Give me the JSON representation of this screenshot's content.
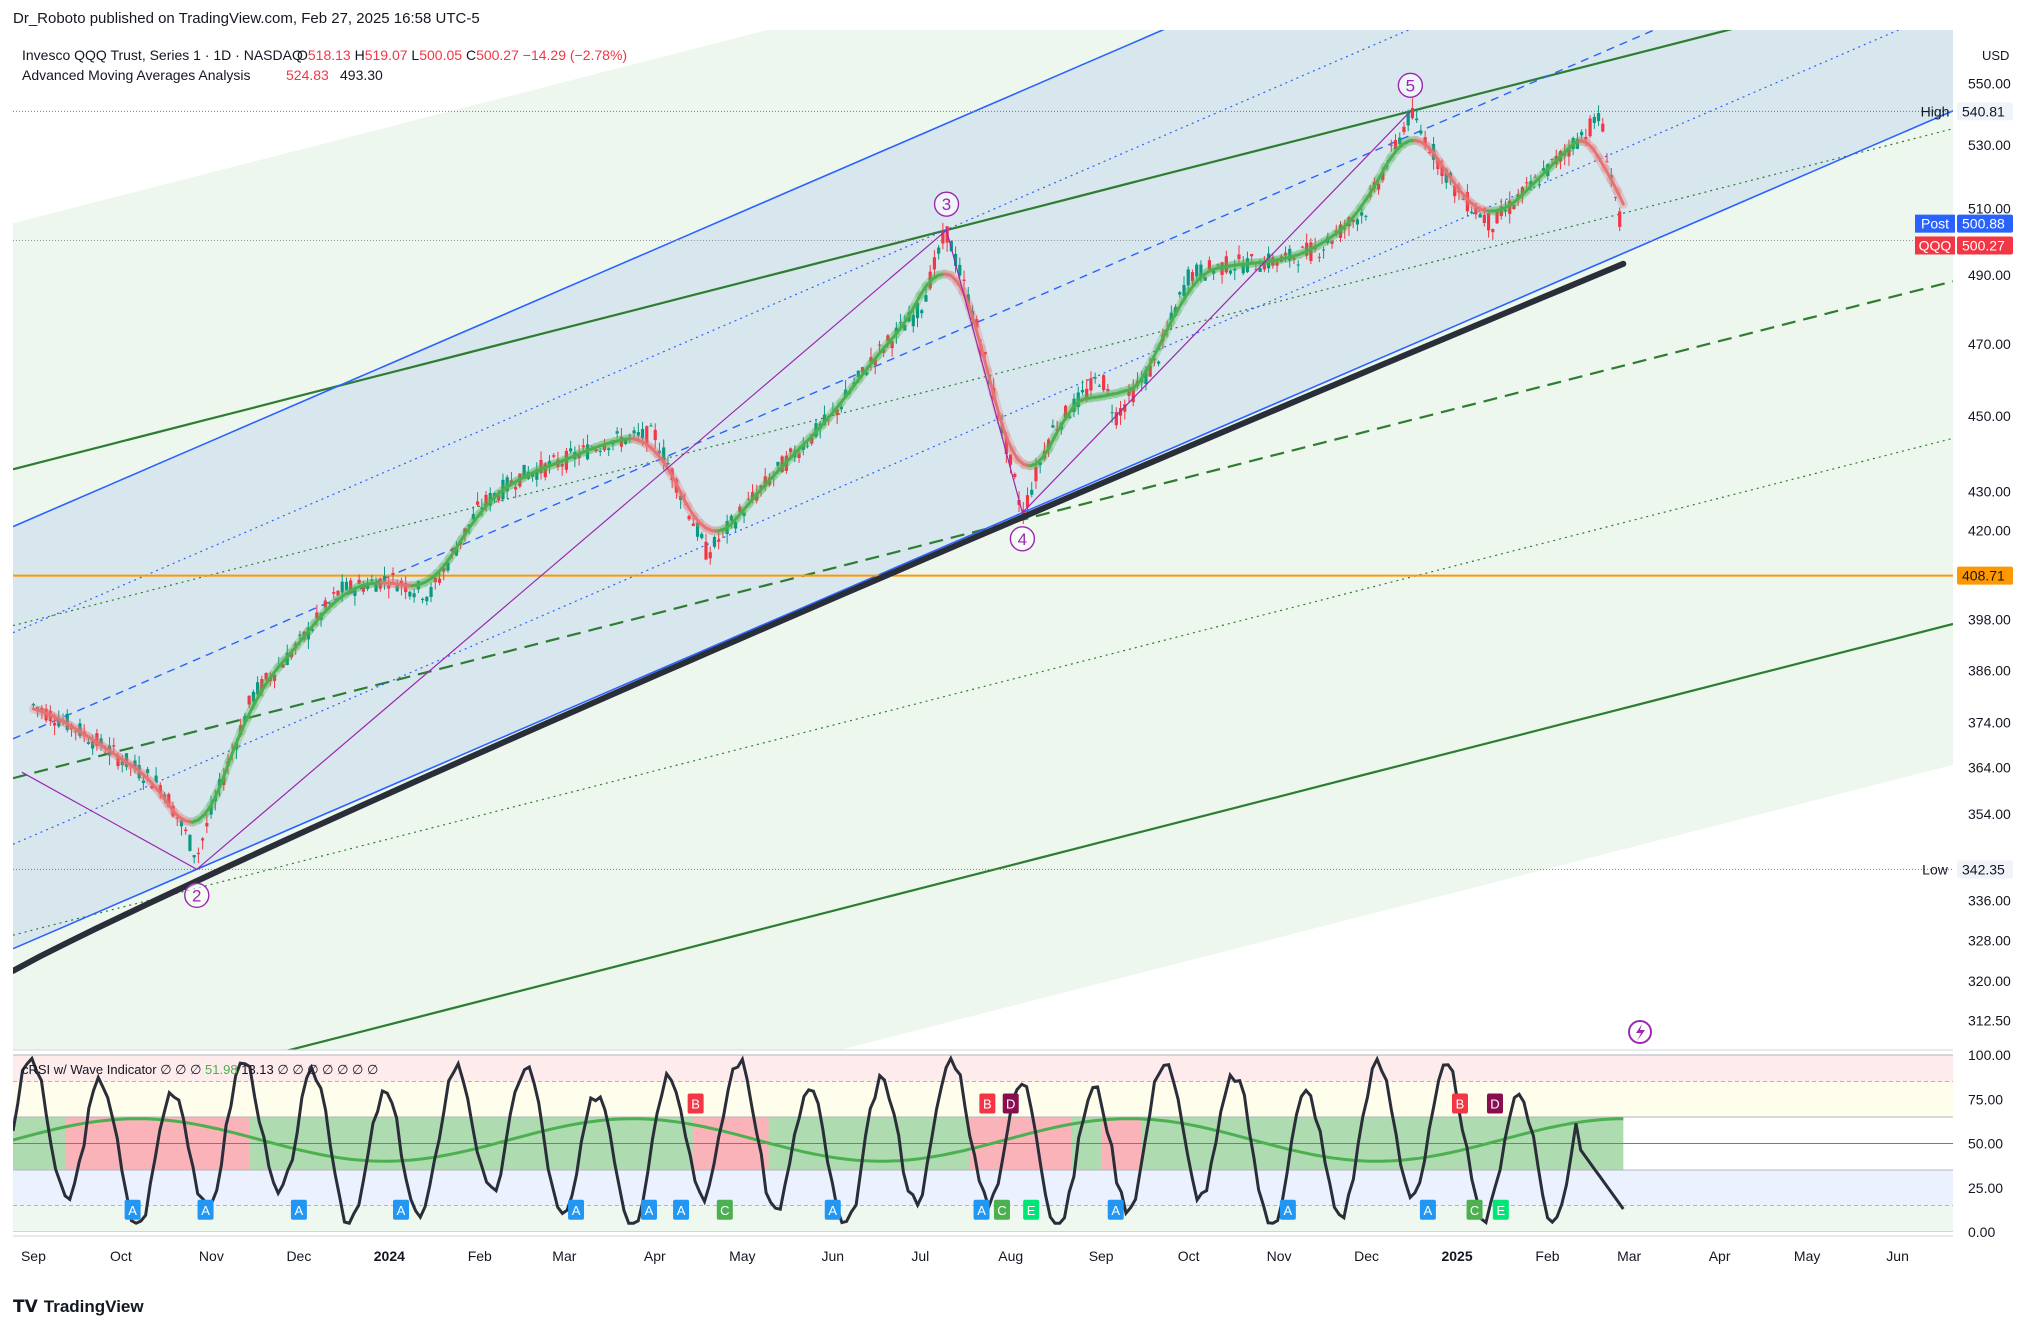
{
  "header": {
    "publisher_line": "Dr_Roboto published on TradingView.com, Feb 27, 2025 16:58 UTC-5",
    "symbol_title": "Invesco QQQ Trust, Series 1 · 1D · NASDAQ",
    "ohlc": {
      "o_label": "O",
      "o": "518.13",
      "h_label": "H",
      "h": "519.07",
      "l_label": "L",
      "l": "500.05",
      "c_label": "C",
      "c": "500.27",
      "change": "−14.29 (−2.78%)"
    },
    "indicator_name": "Advanced Moving Averages Analysis",
    "indicator_v1": "524.83",
    "indicator_v2": "493.30",
    "currency": "USD"
  },
  "chart_data": [
    {
      "type": "line",
      "name_shown": "Invesco QQQ Trust, Series 1",
      "x_ticks": [
        "Sep",
        "Oct",
        "Nov",
        "Dec",
        "2024",
        "Feb",
        "Mar",
        "Apr",
        "May",
        "Jun",
        "Jul",
        "Aug",
        "Sep",
        "Oct",
        "Nov",
        "Dec",
        "2025",
        "Feb",
        "Mar",
        "Apr",
        "May",
        "Jun"
      ],
      "y_ticks": [
        "550.00",
        "530.00",
        "510.00",
        "490.00",
        "470.00",
        "450.00",
        "430.00",
        "420.00",
        "398.00",
        "386.00",
        "374.00",
        "364.00",
        "354.00",
        "336.00",
        "328.00",
        "320.00",
        "312.50"
      ],
      "scale": "log",
      "ylim": [
        307,
        568
      ],
      "price_x": [
        "2023-09-01",
        "2023-09-15",
        "2023-10-01",
        "2023-10-15",
        "2023-10-27",
        "2023-11-15",
        "2023-12-01",
        "2023-12-15",
        "2024-01-01",
        "2024-01-15",
        "2024-02-01",
        "2024-02-15",
        "2024-03-01",
        "2024-03-15",
        "2024-04-01",
        "2024-04-19",
        "2024-05-01",
        "2024-05-15",
        "2024-06-01",
        "2024-06-15",
        "2024-07-01",
        "2024-07-10",
        "2024-07-20",
        "2024-08-05",
        "2024-08-15",
        "2024-09-01",
        "2024-09-06",
        "2024-09-20",
        "2024-10-01",
        "2024-10-15",
        "2024-11-01",
        "2024-11-15",
        "2024-12-01",
        "2024-12-16",
        "2025-01-01",
        "2025-01-13",
        "2025-02-01",
        "2025-02-19",
        "2025-02-27"
      ],
      "price_y": [
        378,
        373,
        366,
        360,
        345,
        380,
        392,
        405,
        408,
        404,
        426,
        434,
        438,
        443,
        445,
        414,
        425,
        437,
        450,
        466,
        480,
        503,
        476,
        424,
        446,
        461,
        450,
        465,
        490,
        493,
        494,
        498,
        510,
        540,
        515,
        505,
        522,
        539,
        500
      ],
      "ma_fast_label": "Advanced Moving Averages Analysis 524.83",
      "ma_slow_label": "493.30",
      "last_close": 500.27,
      "post_close": 500.88,
      "high": 540.81,
      "low": 342.35,
      "horizontal_level": 408.71,
      "wave_labels": [
        "2",
        "3",
        "4",
        "5"
      ],
      "wave_points_x": [
        "2023-10-27",
        "2024-07-10",
        "2024-08-05",
        "2024-12-16"
      ],
      "wave_points_y": [
        342.35,
        503.4,
        424.5,
        540.81
      ]
    },
    {
      "type": "line",
      "name_shown": "cRSI w/ Wave Indicator",
      "ylim": [
        0,
        100
      ],
      "y_ticks": [
        "100.00",
        "75.00",
        "50.00",
        "25.00",
        "0.00"
      ],
      "values_shown": [
        "51.98",
        "13.13"
      ],
      "markers": [
        {
          "label": "A",
          "x": "2023-10-05"
        },
        {
          "label": "A",
          "x": "2023-10-30"
        },
        {
          "label": "A",
          "x": "2023-12-01"
        },
        {
          "label": "A",
          "x": "2024-01-05"
        },
        {
          "label": "A",
          "x": "2024-03-05"
        },
        {
          "label": "A",
          "x": "2024-03-30"
        },
        {
          "label": "A",
          "x": "2024-04-10"
        },
        {
          "label": "B",
          "x": "2024-04-15"
        },
        {
          "label": "C",
          "x": "2024-04-25"
        },
        {
          "label": "A",
          "x": "2024-06-01"
        },
        {
          "label": "A",
          "x": "2024-07-22"
        },
        {
          "label": "B",
          "x": "2024-07-24"
        },
        {
          "label": "C",
          "x": "2024-07-29"
        },
        {
          "label": "D",
          "x": "2024-08-01"
        },
        {
          "label": "E",
          "x": "2024-08-08"
        },
        {
          "label": "A",
          "x": "2024-09-06"
        },
        {
          "label": "A",
          "x": "2024-11-04"
        },
        {
          "label": "A",
          "x": "2024-12-22"
        },
        {
          "label": "B",
          "x": "2025-01-02"
        },
        {
          "label": "C",
          "x": "2025-01-07"
        },
        {
          "label": "D",
          "x": "2025-01-14"
        },
        {
          "label": "E",
          "x": "2025-01-16"
        }
      ]
    }
  ],
  "price_tags": {
    "high_label": "High",
    "high_value": "540.81",
    "post_label": "Post",
    "post_value": "500.88",
    "qqq_label": "QQQ",
    "qqq_value": "500.27",
    "level_value": "408.71",
    "low_label": "Low",
    "low_value": "342.35"
  },
  "colors": {
    "green_ma": "#4caf50",
    "red_ma": "#e57373",
    "blue_channel": "#2962ff",
    "green_channel": "#2e7d32",
    "orange_level": "#ff9800",
    "wave_purple": "#9c27b0",
    "sma_black": "#2a2e39"
  },
  "footer": {
    "brand": "TradingView",
    "logo_icon": "tradingview-logo-icon"
  }
}
